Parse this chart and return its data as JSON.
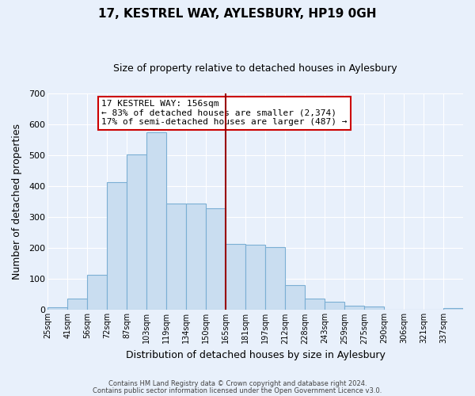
{
  "title": "17, KESTREL WAY, AYLESBURY, HP19 0GH",
  "subtitle": "Size of property relative to detached houses in Aylesbury",
  "xlabel": "Distribution of detached houses by size in Aylesbury",
  "ylabel": "Number of detached properties",
  "footer1": "Contains HM Land Registry data © Crown copyright and database right 2024.",
  "footer2": "Contains public sector information licensed under the Open Government Licence v3.0.",
  "bin_labels": [
    "25sqm",
    "41sqm",
    "56sqm",
    "72sqm",
    "87sqm",
    "103sqm",
    "119sqm",
    "134sqm",
    "150sqm",
    "165sqm",
    "181sqm",
    "197sqm",
    "212sqm",
    "228sqm",
    "243sqm",
    "259sqm",
    "275sqm",
    "290sqm",
    "306sqm",
    "321sqm",
    "337sqm"
  ],
  "bar_heights": [
    8,
    38,
    113,
    413,
    503,
    575,
    345,
    345,
    328,
    213,
    210,
    202,
    80,
    37,
    26,
    13,
    10,
    0,
    2,
    0,
    7
  ],
  "bar_color": "#c9ddf0",
  "bar_edge_color": "#7bafd4",
  "background_color": "#e8f0fb",
  "grid_color": "#ffffff",
  "vline_index": 9,
  "vline_color": "#990000",
  "ylim": [
    0,
    700
  ],
  "yticks": [
    0,
    100,
    200,
    300,
    400,
    500,
    600,
    700
  ],
  "annotation_title": "17 KESTREL WAY: 156sqm",
  "annotation_line1": "← 83% of detached houses are smaller (2,374)",
  "annotation_line2": "17% of semi-detached houses are larger (487) →",
  "annotation_box_edge": "#cc0000",
  "title_fontsize": 11,
  "subtitle_fontsize": 9,
  "xlabel_fontsize": 9,
  "ylabel_fontsize": 9,
  "tick_fontsize": 7,
  "annotation_fontsize": 8
}
